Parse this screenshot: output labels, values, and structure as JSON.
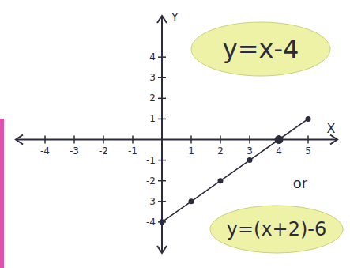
{
  "chart_data": {
    "type": "line",
    "x_label": "X",
    "y_label": "Y",
    "x": [
      0,
      1,
      2,
      3,
      4,
      5
    ],
    "series": [
      {
        "name": "y=x-4",
        "color": "#2b2b3a",
        "marker": "circle",
        "values": [
          -4,
          -3,
          -2,
          -1,
          0,
          1
        ]
      }
    ],
    "xlim": [
      -5,
      6
    ],
    "ylim": [
      -5.5,
      6
    ],
    "xticks": [
      -4,
      -3,
      -2,
      -1,
      1,
      2,
      3,
      4,
      5
    ],
    "yticks": [
      -4,
      -3,
      -2,
      -1,
      1,
      2,
      3,
      4
    ],
    "grid": false,
    "annotations": [
      "y=x-4",
      "or",
      "y=(x+2)-6"
    ]
  }
}
